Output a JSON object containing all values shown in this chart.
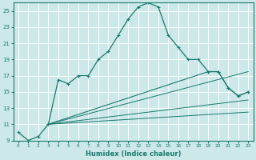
{
  "xlabel": "Humidex (Indice chaleur)",
  "bg_color": "#cce8e8",
  "grid_color": "#ffffff",
  "line_color": "#1a7a6e",
  "xlim": [
    -0.5,
    23.5
  ],
  "ylim": [
    9,
    26
  ],
  "yticks": [
    9,
    11,
    13,
    15,
    17,
    19,
    21,
    23,
    25
  ],
  "xticks": [
    0,
    1,
    2,
    3,
    4,
    5,
    6,
    7,
    8,
    9,
    10,
    11,
    12,
    13,
    14,
    15,
    16,
    17,
    18,
    19,
    20,
    21,
    22,
    23
  ],
  "series1_x": [
    0,
    1,
    2,
    3,
    4,
    5,
    6,
    7,
    8,
    9,
    10,
    11,
    12,
    13,
    14,
    15,
    16,
    17,
    18,
    19,
    20,
    21,
    22,
    23
  ],
  "series1_y": [
    10.0,
    9.0,
    9.5,
    11.0,
    16.5,
    16.0,
    17.0,
    17.0,
    19.0,
    20.0,
    22.0,
    24.0,
    25.5,
    26.0,
    25.5,
    22.0,
    20.5,
    19.0,
    19.0,
    17.5,
    17.5,
    15.5,
    14.5,
    15.0
  ],
  "series2_x": [
    3,
    19,
    20,
    21,
    22,
    23
  ],
  "series2_y": [
    11.0,
    17.5,
    17.5,
    15.5,
    14.5,
    15.0
  ],
  "series3_x": [
    3,
    23
  ],
  "series3_y": [
    11.0,
    17.5
  ],
  "series4_x": [
    3,
    23
  ],
  "series4_y": [
    11.0,
    14.0
  ],
  "series5_x": [
    3,
    23
  ],
  "series5_y": [
    11.0,
    12.5
  ]
}
